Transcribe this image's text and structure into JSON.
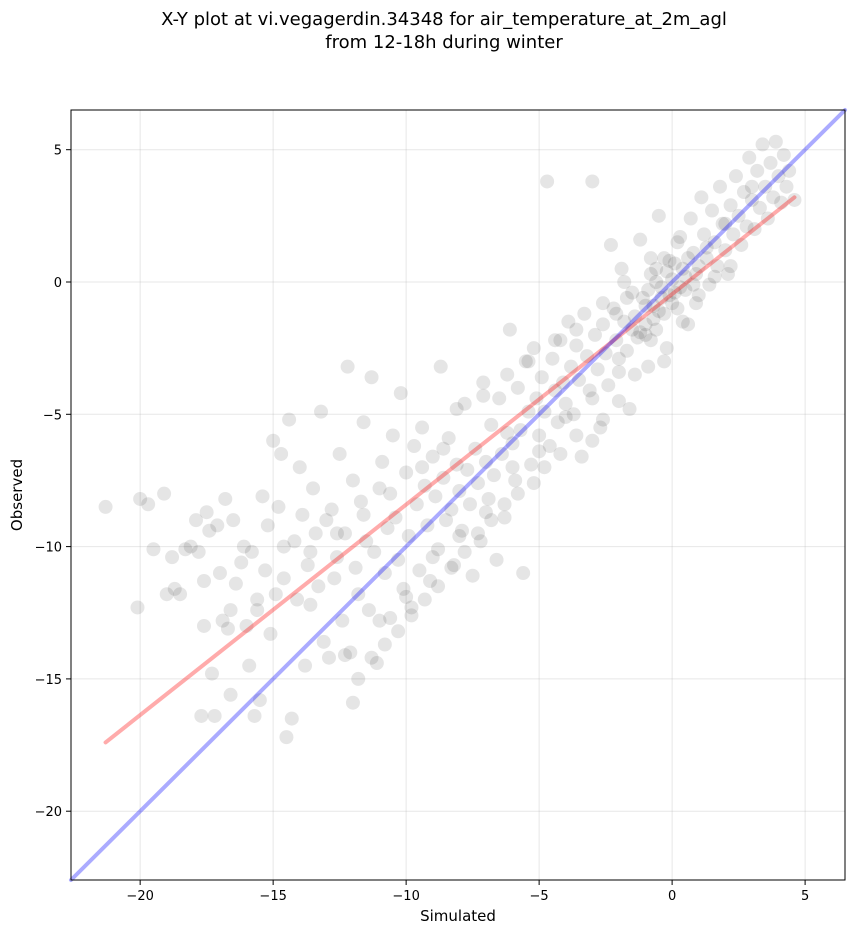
{
  "chart_data": {
    "type": "scatter",
    "title_line1": "X-Y plot at vi.vegagerdin.34348 for air_temperature_at_2m_agl",
    "title_line2": "from 12-18h during winter",
    "xlabel": "Simulated",
    "ylabel": "Observed",
    "xlim": [
      -22.6,
      6.5
    ],
    "ylim": [
      -22.6,
      6.5
    ],
    "xticks": [
      -20,
      -15,
      -10,
      -5,
      0,
      5
    ],
    "yticks": [
      -20,
      -15,
      -10,
      -5,
      0,
      5
    ],
    "xtick_labels": [
      "−20",
      "−15",
      "−10",
      "−5",
      "0",
      "5"
    ],
    "ytick_labels": [
      "−20",
      "−15",
      "−10",
      "−5",
      "0",
      "5"
    ],
    "grid": true,
    "point_color": "#000000",
    "point_alpha": 0.1,
    "fit_line": {
      "color": "#ff0000",
      "x": [
        -21.3,
        4.6
      ],
      "y": [
        -17.4,
        3.2
      ]
    },
    "identity_line": {
      "color": "#0000ff",
      "x": [
        -22.6,
        6.5
      ],
      "y": [
        -22.6,
        6.5
      ]
    },
    "points": [
      [
        -21.3,
        -8.5
      ],
      [
        -20.1,
        -12.3
      ],
      [
        -20.0,
        -8.2
      ],
      [
        -19.7,
        -8.4
      ],
      [
        -19.5,
        -10.1
      ],
      [
        -19.1,
        -8.0
      ],
      [
        -19.0,
        -11.8
      ],
      [
        -18.8,
        -10.4
      ],
      [
        -18.7,
        -11.6
      ],
      [
        -18.5,
        -11.8
      ],
      [
        -18.3,
        -10.1
      ],
      [
        -18.1,
        -10.0
      ],
      [
        -17.9,
        -9.0
      ],
      [
        -17.8,
        -10.2
      ],
      [
        -17.7,
        -16.4
      ],
      [
        -17.6,
        -11.3
      ],
      [
        -17.5,
        -8.7
      ],
      [
        -17.4,
        -9.4
      ],
      [
        -17.3,
        -14.8
      ],
      [
        -17.2,
        -16.4
      ],
      [
        -17.1,
        -9.2
      ],
      [
        -17.0,
        -11.0
      ],
      [
        -16.9,
        -12.8
      ],
      [
        -16.8,
        -8.2
      ],
      [
        -16.7,
        -13.1
      ],
      [
        -16.6,
        -15.6
      ],
      [
        -16.5,
        -9.0
      ],
      [
        -16.4,
        -11.4
      ],
      [
        -16.2,
        -10.6
      ],
      [
        -16.1,
        -10.0
      ],
      [
        -16.0,
        -13.0
      ],
      [
        -15.9,
        -14.5
      ],
      [
        -15.8,
        -10.2
      ],
      [
        -15.7,
        -16.4
      ],
      [
        -15.6,
        -12.4
      ],
      [
        -15.5,
        -15.8
      ],
      [
        -15.4,
        -8.1
      ],
      [
        -15.3,
        -10.9
      ],
      [
        -15.2,
        -9.2
      ],
      [
        -15.1,
        -13.3
      ],
      [
        -15.0,
        -6.0
      ],
      [
        -14.9,
        -11.8
      ],
      [
        -14.8,
        -8.5
      ],
      [
        -14.7,
        -6.5
      ],
      [
        -14.6,
        -10.0
      ],
      [
        -14.5,
        -17.2
      ],
      [
        -14.4,
        -5.2
      ],
      [
        -14.3,
        -16.5
      ],
      [
        -14.2,
        -9.8
      ],
      [
        -14.1,
        -12.0
      ],
      [
        -14.0,
        -7.0
      ],
      [
        -13.9,
        -8.8
      ],
      [
        -13.8,
        -14.5
      ],
      [
        -13.7,
        -10.7
      ],
      [
        -13.6,
        -12.2
      ],
      [
        -13.5,
        -7.8
      ],
      [
        -13.4,
        -9.5
      ],
      [
        -13.3,
        -11.5
      ],
      [
        -13.2,
        -4.9
      ],
      [
        -13.1,
        -13.6
      ],
      [
        -13.0,
        -9.0
      ],
      [
        -12.9,
        -14.2
      ],
      [
        -12.8,
        -8.6
      ],
      [
        -12.7,
        -11.2
      ],
      [
        -12.6,
        -10.4
      ],
      [
        -12.5,
        -6.5
      ],
      [
        -12.4,
        -12.8
      ],
      [
        -12.3,
        -9.5
      ],
      [
        -12.2,
        -3.2
      ],
      [
        -12.1,
        -14.0
      ],
      [
        -12.0,
        -7.5
      ],
      [
        -11.9,
        -10.8
      ],
      [
        -11.8,
        -11.8
      ],
      [
        -11.7,
        -8.3
      ],
      [
        -11.6,
        -5.3
      ],
      [
        -11.5,
        -9.8
      ],
      [
        -11.4,
        -12.4
      ],
      [
        -11.3,
        -3.6
      ],
      [
        -11.2,
        -10.2
      ],
      [
        -11.1,
        -14.4
      ],
      [
        -11.0,
        -7.8
      ],
      [
        -10.9,
        -6.8
      ],
      [
        -10.8,
        -11.0
      ],
      [
        -10.7,
        -9.3
      ],
      [
        -10.6,
        -12.7
      ],
      [
        -10.5,
        -5.8
      ],
      [
        -10.4,
        -8.9
      ],
      [
        -10.3,
        -10.5
      ],
      [
        -10.2,
        -4.2
      ],
      [
        -10.1,
        -11.6
      ],
      [
        -10.0,
        -7.2
      ],
      [
        -9.9,
        -9.6
      ],
      [
        -9.8,
        -12.3
      ],
      [
        -9.7,
        -6.2
      ],
      [
        -9.6,
        -8.4
      ],
      [
        -9.5,
        -10.9
      ],
      [
        -9.4,
        -5.5
      ],
      [
        -9.3,
        -7.7
      ],
      [
        -9.2,
        -9.2
      ],
      [
        -9.1,
        -11.3
      ],
      [
        -9.0,
        -6.6
      ],
      [
        -8.9,
        -8.1
      ],
      [
        -8.8,
        -10.1
      ],
      [
        -8.7,
        -3.2
      ],
      [
        -8.6,
        -7.4
      ],
      [
        -8.5,
        -9.0
      ],
      [
        -8.4,
        -5.9
      ],
      [
        -8.3,
        -8.6
      ],
      [
        -8.2,
        -10.7
      ],
      [
        -8.1,
        -6.9
      ],
      [
        -8.0,
        -7.9
      ],
      [
        -7.9,
        -9.4
      ],
      [
        -7.8,
        -4.6
      ],
      [
        -7.7,
        -7.1
      ],
      [
        -7.6,
        -8.4
      ],
      [
        -7.5,
        -11.1
      ],
      [
        -7.4,
        -6.3
      ],
      [
        -7.3,
        -7.6
      ],
      [
        -7.2,
        -9.8
      ],
      [
        -7.1,
        -3.8
      ],
      [
        -7.0,
        -6.8
      ],
      [
        -6.9,
        -8.2
      ],
      [
        -6.8,
        -5.4
      ],
      [
        -6.7,
        -7.3
      ],
      [
        -6.6,
        -10.5
      ],
      [
        -6.5,
        -4.4
      ],
      [
        -6.4,
        -6.5
      ],
      [
        -6.3,
        -8.9
      ],
      [
        -6.2,
        -5.7
      ],
      [
        -6.1,
        -1.8
      ],
      [
        -6.0,
        -6.1
      ],
      [
        -5.9,
        -7.5
      ],
      [
        -5.8,
        -4.0
      ],
      [
        -5.7,
        -5.6
      ],
      [
        -5.6,
        -11.0
      ],
      [
        -5.5,
        -3.0
      ],
      [
        -5.4,
        -4.9
      ],
      [
        -5.3,
        -6.9
      ],
      [
        -5.2,
        -2.5
      ],
      [
        -5.1,
        -4.4
      ],
      [
        -5.0,
        -5.8
      ],
      [
        -4.9,
        -3.6
      ],
      [
        -4.8,
        -4.9
      ],
      [
        -4.7,
        3.8
      ],
      [
        -4.6,
        -6.2
      ],
      [
        -4.5,
        -2.9
      ],
      [
        -4.4,
        -4.1
      ],
      [
        -4.3,
        -5.3
      ],
      [
        -4.2,
        -2.2
      ],
      [
        -4.1,
        -3.8
      ],
      [
        -4.0,
        -4.6
      ],
      [
        -3.9,
        -1.5
      ],
      [
        -3.8,
        -3.2
      ],
      [
        -3.7,
        -5.0
      ],
      [
        -3.6,
        -2.4
      ],
      [
        -3.5,
        -3.7
      ],
      [
        -3.4,
        -6.6
      ],
      [
        -3.3,
        -1.2
      ],
      [
        -3.2,
        -2.8
      ],
      [
        -3.1,
        -4.1
      ],
      [
        -3.0,
        3.8
      ],
      [
        -2.9,
        -2.0
      ],
      [
        -2.8,
        -3.3
      ],
      [
        -2.7,
        -5.5
      ],
      [
        -2.6,
        -1.6
      ],
      [
        -2.5,
        -2.7
      ],
      [
        -2.4,
        -3.9
      ],
      [
        -2.3,
        1.4
      ],
      [
        -2.2,
        -1.0
      ],
      [
        -2.1,
        -2.2
      ],
      [
        -2.0,
        -3.4
      ],
      [
        -1.9,
        0.5
      ],
      [
        -1.8,
        -1.5
      ],
      [
        -1.7,
        -2.6
      ],
      [
        -1.6,
        -4.8
      ],
      [
        -1.5,
        -0.4
      ],
      [
        -1.4,
        -1.3
      ],
      [
        -1.3,
        -2.1
      ],
      [
        -1.2,
        1.6
      ],
      [
        -1.1,
        -0.6
      ],
      [
        -1.0,
        -1.6
      ],
      [
        -0.9,
        -3.2
      ],
      [
        -0.8,
        0.3
      ],
      [
        -0.7,
        -0.9
      ],
      [
        -0.6,
        -1.8
      ],
      [
        -0.5,
        2.5
      ],
      [
        -0.4,
        -0.2
      ],
      [
        -0.3,
        -1.2
      ],
      [
        -0.2,
        -2.5
      ],
      [
        -0.1,
        0.8
      ],
      [
        0.0,
        0.1
      ],
      [
        0.1,
        -0.4
      ],
      [
        0.2,
        -1.0
      ],
      [
        0.3,
        1.7
      ],
      [
        0.4,
        0.5
      ],
      [
        0.5,
        -0.3
      ],
      [
        0.6,
        -1.6
      ],
      [
        0.7,
        2.4
      ],
      [
        0.8,
        1.1
      ],
      [
        0.9,
        0.3
      ],
      [
        1.0,
        -0.5
      ],
      [
        1.1,
        3.2
      ],
      [
        1.2,
        1.8
      ],
      [
        1.3,
        0.9
      ],
      [
        1.4,
        -0.1
      ],
      [
        1.5,
        2.7
      ],
      [
        1.6,
        1.5
      ],
      [
        1.7,
        0.6
      ],
      [
        1.8,
        3.6
      ],
      [
        1.9,
        2.2
      ],
      [
        2.0,
        1.2
      ],
      [
        2.1,
        0.3
      ],
      [
        2.2,
        2.9
      ],
      [
        2.3,
        1.8
      ],
      [
        2.4,
        4.0
      ],
      [
        2.5,
        2.5
      ],
      [
        2.6,
        1.4
      ],
      [
        2.7,
        3.4
      ],
      [
        2.8,
        2.1
      ],
      [
        2.9,
        4.7
      ],
      [
        3.0,
        3.1
      ],
      [
        3.1,
        2.0
      ],
      [
        3.2,
        4.2
      ],
      [
        3.3,
        2.8
      ],
      [
        3.4,
        5.2
      ],
      [
        3.5,
        3.6
      ],
      [
        3.6,
        2.4
      ],
      [
        3.7,
        4.5
      ],
      [
        3.8,
        3.2
      ],
      [
        3.9,
        5.3
      ],
      [
        4.0,
        4.0
      ],
      [
        4.1,
        3.0
      ],
      [
        4.2,
        4.8
      ],
      [
        4.3,
        3.6
      ],
      [
        4.4,
        4.2
      ],
      [
        4.6,
        3.1
      ],
      [
        2.2,
        0.6
      ],
      [
        1.6,
        0.2
      ],
      [
        0.9,
        -0.8
      ],
      [
        0.4,
        -1.5
      ],
      [
        -0.3,
        -3.0
      ],
      [
        -0.8,
        -2.2
      ],
      [
        -1.4,
        -3.5
      ],
      [
        -2.0,
        -4.5
      ],
      [
        -2.6,
        -5.2
      ],
      [
        -3.0,
        -6.0
      ],
      [
        -3.6,
        -5.8
      ],
      [
        -4.2,
        -6.5
      ],
      [
        -4.8,
        -7.0
      ],
      [
        -5.2,
        -7.6
      ],
      [
        -5.8,
        -8.0
      ],
      [
        -6.3,
        -8.4
      ],
      [
        -6.8,
        -9.0
      ],
      [
        -7.3,
        -9.5
      ],
      [
        -7.8,
        -10.2
      ],
      [
        -8.3,
        -10.8
      ],
      [
        -8.8,
        -11.5
      ],
      [
        -9.3,
        -12.0
      ],
      [
        -9.8,
        -12.6
      ],
      [
        -10.3,
        -13.2
      ],
      [
        -10.8,
        -13.7
      ],
      [
        -11.3,
        -14.2
      ],
      [
        -11.8,
        -15.0
      ],
      [
        -12.3,
        -14.1
      ],
      [
        -12.0,
        -15.9
      ],
      [
        -11.0,
        -12.8
      ],
      [
        -10.0,
        -11.9
      ],
      [
        -9.0,
        -10.4
      ],
      [
        -8.0,
        -9.6
      ],
      [
        -7.0,
        -8.7
      ],
      [
        -6.0,
        -7.0
      ],
      [
        -5.0,
        -6.4
      ],
      [
        -4.0,
        -5.1
      ],
      [
        -3.0,
        -4.4
      ],
      [
        -2.0,
        -2.9
      ],
      [
        -1.0,
        -2.0
      ],
      [
        0.0,
        -0.8
      ],
      [
        1.0,
        0.6
      ],
      [
        2.0,
        2.2
      ],
      [
        3.0,
        3.6
      ],
      [
        -8.6,
        -6.3
      ],
      [
        -9.4,
        -7.0
      ],
      [
        -10.6,
        -8.0
      ],
      [
        -11.6,
        -8.8
      ],
      [
        -12.6,
        -9.5
      ],
      [
        -13.6,
        -10.2
      ],
      [
        -14.6,
        -11.2
      ],
      [
        -15.6,
        -12.0
      ],
      [
        -16.6,
        -12.4
      ],
      [
        -17.6,
        -13.0
      ],
      [
        -8.1,
        -4.8
      ],
      [
        -7.1,
        -4.3
      ],
      [
        -6.2,
        -3.5
      ],
      [
        -5.4,
        -3.0
      ],
      [
        -4.4,
        -2.2
      ],
      [
        -3.6,
        -1.8
      ],
      [
        -2.6,
        -0.8
      ],
      [
        -1.8,
        0.0
      ],
      [
        -0.8,
        0.9
      ],
      [
        0.2,
        1.5
      ],
      [
        -0.6,
        0.0
      ],
      [
        -0.2,
        0.4
      ],
      [
        0.1,
        0.7
      ],
      [
        -0.4,
        -0.6
      ],
      [
        -1.0,
        -0.9
      ],
      [
        -1.2,
        -1.9
      ],
      [
        -0.7,
        -1.4
      ],
      [
        0.3,
        -0.2
      ],
      [
        0.5,
        0.2
      ],
      [
        -0.1,
        -0.5
      ],
      [
        -0.5,
        -1.1
      ],
      [
        -0.9,
        -0.3
      ],
      [
        -1.5,
        -1.8
      ],
      [
        -2.1,
        -1.2
      ],
      [
        -1.7,
        -0.6
      ],
      [
        0.6,
        0.9
      ],
      [
        0.8,
        -0.1
      ],
      [
        1.3,
        1.3
      ],
      [
        -0.3,
        0.9
      ],
      [
        -0.6,
        0.5
      ]
    ]
  }
}
